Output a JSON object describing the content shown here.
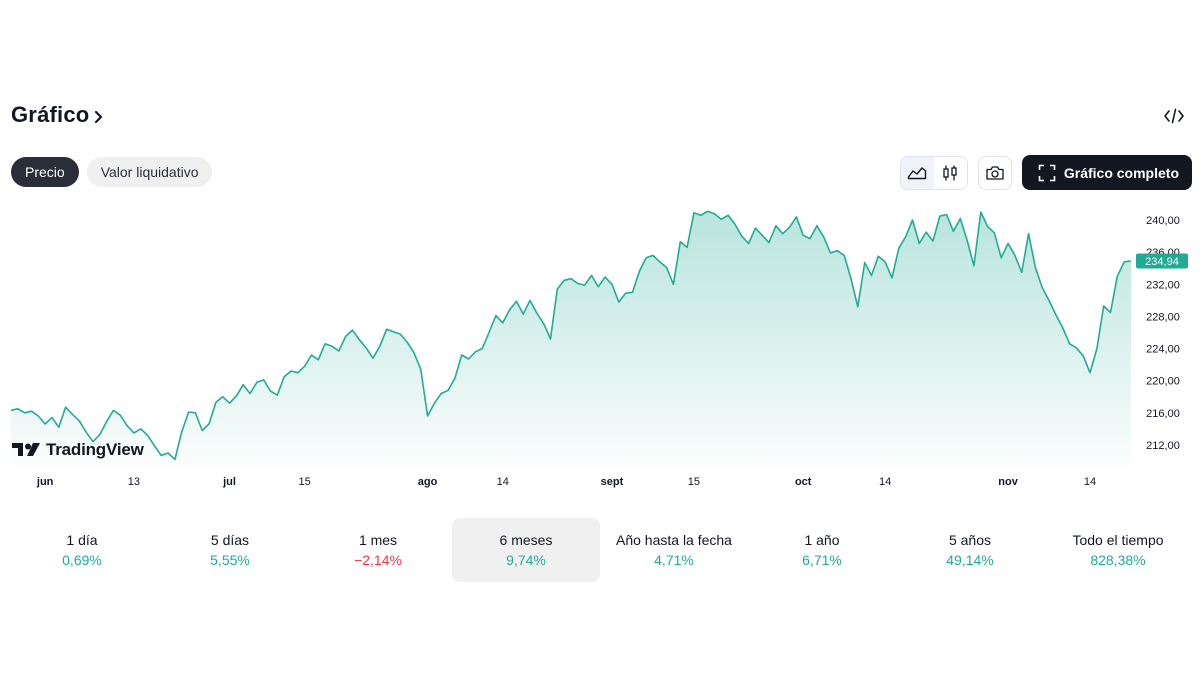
{
  "header": {
    "title": "Gráfico"
  },
  "tabs": [
    {
      "label": "Precio",
      "active": true
    },
    {
      "label": "Valor liquidativo",
      "active": false
    }
  ],
  "toolbar": {
    "full_chart_label": "Gráfico completo",
    "icons": [
      "area-chart-icon",
      "candles-icon",
      "camera-icon",
      "fullscreen-icon",
      "embed-code-icon"
    ]
  },
  "watermark": {
    "text": "TradingView"
  },
  "colors": {
    "line": "#22ab94",
    "positive": "#22ab94",
    "negative": "#f23645",
    "dark": "#131722"
  },
  "chart_data": {
    "type": "area",
    "ylim": [
      209.5,
      242.5
    ],
    "y_ticks": [
      "240,00",
      "236,00",
      "232,00",
      "228,00",
      "224,00",
      "220,00",
      "216,00",
      "212,00"
    ],
    "y_tick_values": [
      240,
      236,
      232,
      228,
      224,
      220,
      216,
      212
    ],
    "last_price_label": "234,94",
    "x_ticks": [
      {
        "label": "jun",
        "index": 5,
        "bold": true
      },
      {
        "label": "13",
        "index": 18,
        "bold": false
      },
      {
        "label": "jul",
        "index": 32,
        "bold": true
      },
      {
        "label": "15",
        "index": 43,
        "bold": false
      },
      {
        "label": "ago",
        "index": 61,
        "bold": true
      },
      {
        "label": "14",
        "index": 72,
        "bold": false
      },
      {
        "label": "sept",
        "index": 88,
        "bold": true
      },
      {
        "label": "15",
        "index": 100,
        "bold": false
      },
      {
        "label": "oct",
        "index": 116,
        "bold": true
      },
      {
        "label": "14",
        "index": 128,
        "bold": false
      },
      {
        "label": "nov",
        "index": 146,
        "bold": true
      },
      {
        "label": "14",
        "index": 158,
        "bold": false
      }
    ],
    "values": [
      216.3,
      216.5,
      216.0,
      216.2,
      215.6,
      214.6,
      215.4,
      214.2,
      216.7,
      215.8,
      215.0,
      213.6,
      212.4,
      213.3,
      214.9,
      216.3,
      215.7,
      214.4,
      213.5,
      214.0,
      213.2,
      211.9,
      210.7,
      211.0,
      210.2,
      213.6,
      216.1,
      216.0,
      213.8,
      214.6,
      217.3,
      218.0,
      217.2,
      218.1,
      219.5,
      218.4,
      219.8,
      220.1,
      218.7,
      218.2,
      220.5,
      221.2,
      221.0,
      221.8,
      223.2,
      222.6,
      224.6,
      224.3,
      223.7,
      225.5,
      226.3,
      225.1,
      224.1,
      222.8,
      224.3,
      226.4,
      226.1,
      225.8,
      224.8,
      223.5,
      221.4,
      215.6,
      217.2,
      218.4,
      218.8,
      220.3,
      223.2,
      222.7,
      223.6,
      224.0,
      226.0,
      228.1,
      227.2,
      228.8,
      229.9,
      228.3,
      230.0,
      228.4,
      227.1,
      225.2,
      231.4,
      232.5,
      232.7,
      232.1,
      231.9,
      233.1,
      231.7,
      232.9,
      232.0,
      229.8,
      230.9,
      231.0,
      233.6,
      235.3,
      235.6,
      234.8,
      234.1,
      232.0,
      237.3,
      236.6,
      240.9,
      240.6,
      241.1,
      240.8,
      240.1,
      240.6,
      239.5,
      238.0,
      237.1,
      239.0,
      238.1,
      237.2,
      239.3,
      238.3,
      239.1,
      240.4,
      238.1,
      237.7,
      239.3,
      237.9,
      235.9,
      236.2,
      235.6,
      232.7,
      229.2,
      234.7,
      233.1,
      235.5,
      234.8,
      232.8,
      236.5,
      237.9,
      240.0,
      237.1,
      238.5,
      237.4,
      240.5,
      240.7,
      238.6,
      240.2,
      237.5,
      234.3,
      241.0,
      239.2,
      238.4,
      235.3,
      237.1,
      235.6,
      233.5,
      238.3,
      234.1,
      231.6,
      230.0,
      228.2,
      226.6,
      224.6,
      224.1,
      223.1,
      221.0,
      224.0,
      229.3,
      228.5,
      233.0,
      234.8,
      234.9
    ]
  },
  "periods": [
    {
      "label": "1 día",
      "value": "0,69%",
      "sign": "pos",
      "active": false
    },
    {
      "label": "5 días",
      "value": "5,55%",
      "sign": "pos",
      "active": false
    },
    {
      "label": "1 mes",
      "value": "−2,14%",
      "sign": "neg",
      "active": false
    },
    {
      "label": "6 meses",
      "value": "9,74%",
      "sign": "pos",
      "active": true
    },
    {
      "label": "Año hasta la fecha",
      "value": "4,71%",
      "sign": "pos",
      "active": false
    },
    {
      "label": "1 año",
      "value": "6,71%",
      "sign": "pos",
      "active": false
    },
    {
      "label": "5 años",
      "value": "49,14%",
      "sign": "pos",
      "active": false
    },
    {
      "label": "Todo el tiempo",
      "value": "828,38%",
      "sign": "pos",
      "active": false
    }
  ]
}
